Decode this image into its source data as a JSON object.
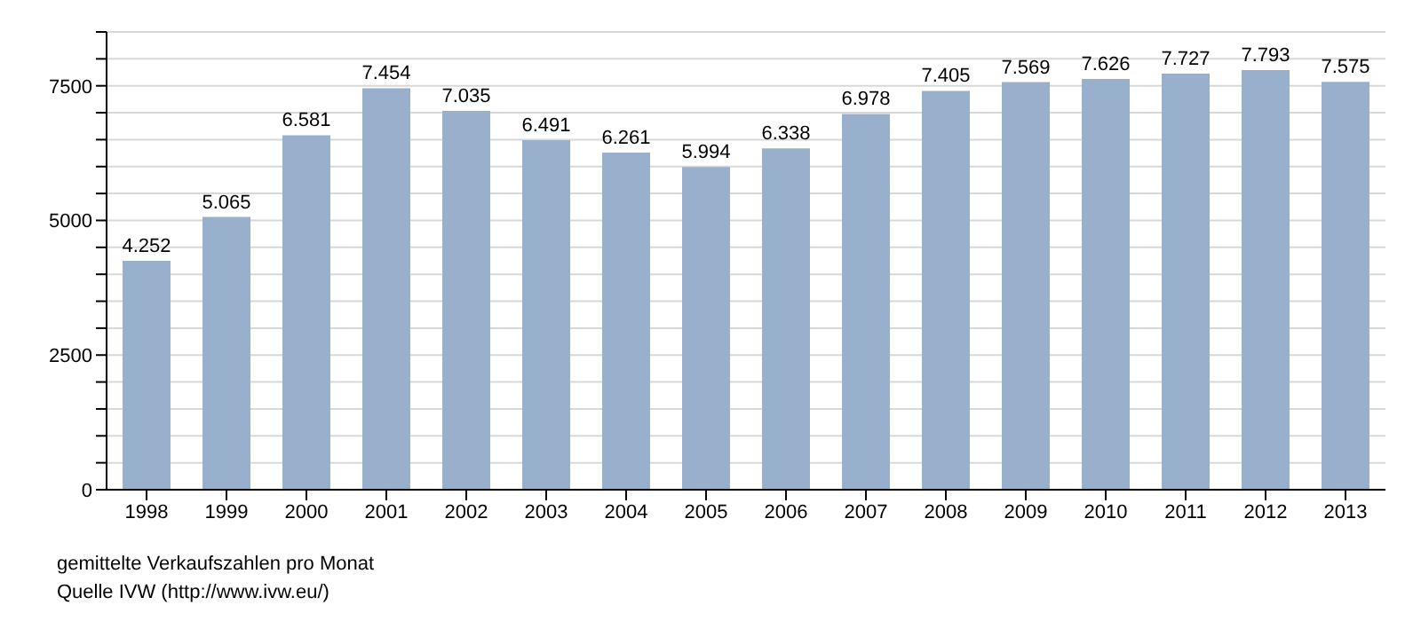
{
  "chart_data": {
    "type": "bar",
    "categories": [
      "1998",
      "1999",
      "2000",
      "2001",
      "2002",
      "2003",
      "2004",
      "2005",
      "2006",
      "2007",
      "2008",
      "2009",
      "2010",
      "2011",
      "2012",
      "2013"
    ],
    "values": [
      4252,
      5065,
      6581,
      7454,
      7035,
      6491,
      6261,
      5994,
      6338,
      6978,
      7405,
      7569,
      7626,
      7727,
      7793,
      7575
    ],
    "value_labels": [
      "4.252",
      "5.065",
      "6.581",
      "7.454",
      "7.035",
      "6.491",
      "6.261",
      "5.994",
      "6.338",
      "6.978",
      "7.405",
      "7.569",
      "7.626",
      "7.727",
      "7.793",
      "7.575"
    ],
    "color": "#98b0cc",
    "ylim": [
      0,
      8500
    ],
    "yticks": [
      0,
      {
        "value": 500,
        "label": null
      },
      {
        "value": 1000,
        "label": null
      },
      {
        "value": 1500,
        "label": null
      },
      {
        "value": 2000,
        "label": null
      },
      2500,
      {
        "value": 3000,
        "label": null
      },
      {
        "value": 3500,
        "label": null
      },
      {
        "value": 4000,
        "label": null
      },
      {
        "value": 4500,
        "label": null
      },
      5000,
      {
        "value": 5500,
        "label": null
      },
      {
        "value": 6000,
        "label": null
      },
      {
        "value": 6500,
        "label": null
      },
      {
        "value": 7000,
        "label": null
      },
      7500,
      {
        "value": 8000,
        "label": null
      },
      {
        "value": 8500,
        "label": null
      }
    ],
    "grid": "y",
    "annotations": [
      "gemittelte Verkaufszahlen pro Monat",
      "Quelle IVW (http://www.ivw.eu/)"
    ]
  }
}
